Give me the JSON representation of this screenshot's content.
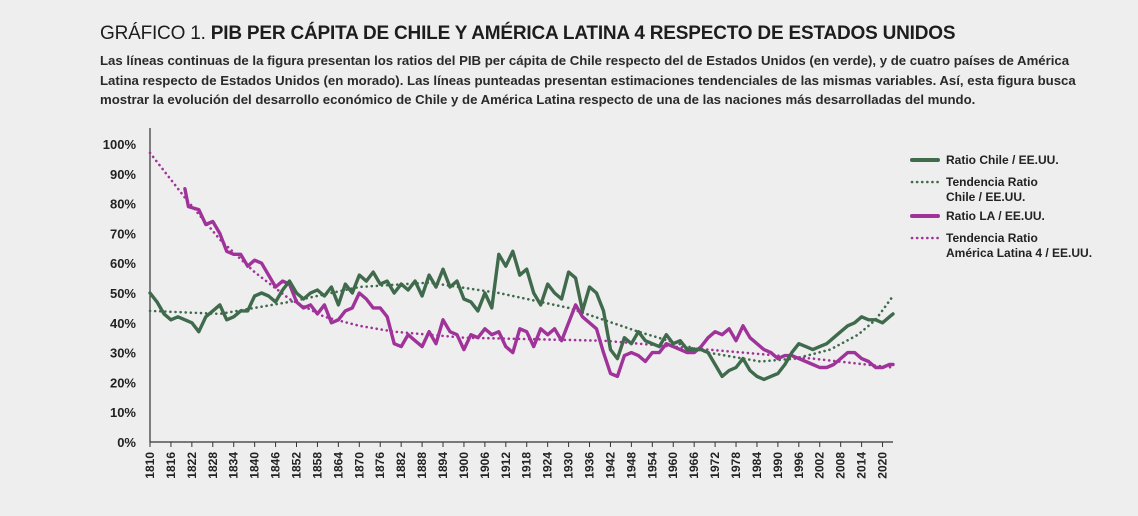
{
  "header": {
    "title_lead": "GRÁFICO 1.",
    "title_main": "PIB PER CÁPITA DE CHILE Y AMÉRICA LATINA 4 RESPECTO DE ESTADOS UNIDOS",
    "subtitle": "Las líneas continuas de la figura presentan los ratios del PIB per cápita de Chile respecto del de Estados Unidos (en verde), y de cuatro países de América Latina respecto de Estados Unidos (en morado). Las líneas punteadas presentan estimaciones tendenciales de las mismas variables. Así, esta figura busca mostrar la evolución del desarrollo económico de Chile y de América Latina respecto de una de las naciones más desarrolladas del mundo."
  },
  "colors": {
    "chile": "#3f6a4c",
    "la": "#a0339a",
    "axis": "#333333",
    "background": "#eeeeee"
  },
  "chart_data": {
    "type": "line",
    "xlim": [
      1810,
      2023
    ],
    "ylim": [
      0,
      100
    ],
    "x_ticks": [
      1810,
      1816,
      1822,
      1828,
      1834,
      1840,
      1846,
      1852,
      1858,
      1864,
      1870,
      1876,
      1882,
      1888,
      1894,
      1900,
      1906,
      1912,
      1918,
      1924,
      1930,
      1936,
      1942,
      1948,
      1954,
      1960,
      1966,
      1972,
      1978,
      1984,
      1990,
      1996,
      2002,
      2008,
      2014,
      2020
    ],
    "y_ticks": [
      "0%",
      "10%",
      "20%",
      "30%",
      "40%",
      "50%",
      "60%",
      "70%",
      "80%",
      "90%",
      "100%"
    ],
    "legend_position": "right",
    "series": [
      {
        "name": "Ratio Chile / EE.UU.",
        "style": "solid",
        "color": "#3f6a4c",
        "points": [
          [
            1810,
            50
          ],
          [
            1812,
            47
          ],
          [
            1814,
            43
          ],
          [
            1816,
            41
          ],
          [
            1818,
            42
          ],
          [
            1820,
            41
          ],
          [
            1822,
            40
          ],
          [
            1824,
            37
          ],
          [
            1826,
            42
          ],
          [
            1828,
            44
          ],
          [
            1830,
            46
          ],
          [
            1832,
            41
          ],
          [
            1834,
            42
          ],
          [
            1836,
            44
          ],
          [
            1838,
            44
          ],
          [
            1840,
            49
          ],
          [
            1842,
            50
          ],
          [
            1844,
            49
          ],
          [
            1846,
            47
          ],
          [
            1848,
            51
          ],
          [
            1850,
            54
          ],
          [
            1852,
            50
          ],
          [
            1854,
            48
          ],
          [
            1856,
            50
          ],
          [
            1858,
            51
          ],
          [
            1860,
            49
          ],
          [
            1862,
            52
          ],
          [
            1864,
            46
          ],
          [
            1866,
            53
          ],
          [
            1868,
            50
          ],
          [
            1870,
            56
          ],
          [
            1872,
            54
          ],
          [
            1874,
            57
          ],
          [
            1876,
            53
          ],
          [
            1878,
            54
          ],
          [
            1880,
            50
          ],
          [
            1882,
            53
          ],
          [
            1884,
            51
          ],
          [
            1886,
            54
          ],
          [
            1888,
            49
          ],
          [
            1890,
            56
          ],
          [
            1892,
            52
          ],
          [
            1894,
            58
          ],
          [
            1896,
            52
          ],
          [
            1898,
            54
          ],
          [
            1900,
            48
          ],
          [
            1902,
            47
          ],
          [
            1904,
            44
          ],
          [
            1906,
            50
          ],
          [
            1908,
            45
          ],
          [
            1910,
            63
          ],
          [
            1912,
            59
          ],
          [
            1914,
            64
          ],
          [
            1916,
            56
          ],
          [
            1918,
            58
          ],
          [
            1920,
            50
          ],
          [
            1922,
            46
          ],
          [
            1924,
            53
          ],
          [
            1926,
            50
          ],
          [
            1928,
            48
          ],
          [
            1930,
            57
          ],
          [
            1932,
            55
          ],
          [
            1934,
            44
          ],
          [
            1936,
            52
          ],
          [
            1938,
            50
          ],
          [
            1940,
            44
          ],
          [
            1942,
            31
          ],
          [
            1944,
            28
          ],
          [
            1946,
            35
          ],
          [
            1948,
            33
          ],
          [
            1950,
            37
          ],
          [
            1952,
            34
          ],
          [
            1954,
            33
          ],
          [
            1956,
            32
          ],
          [
            1958,
            36
          ],
          [
            1960,
            33
          ],
          [
            1962,
            34
          ],
          [
            1964,
            31
          ],
          [
            1966,
            31
          ],
          [
            1968,
            31
          ],
          [
            1970,
            30
          ],
          [
            1972,
            26
          ],
          [
            1974,
            22
          ],
          [
            1976,
            24
          ],
          [
            1978,
            25
          ],
          [
            1980,
            28
          ],
          [
            1982,
            24
          ],
          [
            1984,
            22
          ],
          [
            1986,
            21
          ],
          [
            1988,
            22
          ],
          [
            1990,
            23
          ],
          [
            1992,
            26
          ],
          [
            1994,
            30
          ],
          [
            1996,
            33
          ],
          [
            1998,
            32
          ],
          [
            2000,
            31
          ],
          [
            2002,
            32
          ],
          [
            2004,
            33
          ],
          [
            2006,
            35
          ],
          [
            2008,
            37
          ],
          [
            2010,
            39
          ],
          [
            2012,
            40
          ],
          [
            2014,
            42
          ],
          [
            2016,
            41
          ],
          [
            2018,
            41
          ],
          [
            2020,
            40
          ],
          [
            2022,
            42
          ],
          [
            2023,
            43
          ]
        ]
      },
      {
        "name": "Tendencia Ratio Chile / EE.UU.",
        "style": "dotted",
        "color": "#3f6a4c",
        "points": [
          [
            1810,
            44
          ],
          [
            1830,
            43
          ],
          [
            1850,
            47
          ],
          [
            1870,
            52
          ],
          [
            1890,
            53.5
          ],
          [
            1910,
            50
          ],
          [
            1930,
            45
          ],
          [
            1950,
            37
          ],
          [
            1970,
            30
          ],
          [
            1985,
            27
          ],
          [
            1995,
            28
          ],
          [
            2005,
            31
          ],
          [
            2013,
            36
          ],
          [
            2018,
            41
          ],
          [
            2023,
            49
          ]
        ]
      },
      {
        "name": "Ratio LA / EE.UU.",
        "style": "solid",
        "color": "#a0339a",
        "points": [
          [
            1820,
            85
          ],
          [
            1821,
            79
          ],
          [
            1824,
            78
          ],
          [
            1826,
            73
          ],
          [
            1828,
            74
          ],
          [
            1830,
            70
          ],
          [
            1832,
            64
          ],
          [
            1834,
            63
          ],
          [
            1836,
            63
          ],
          [
            1838,
            59
          ],
          [
            1840,
            61
          ],
          [
            1842,
            60
          ],
          [
            1844,
            56
          ],
          [
            1846,
            52
          ],
          [
            1848,
            54
          ],
          [
            1850,
            53
          ],
          [
            1852,
            47
          ],
          [
            1854,
            45
          ],
          [
            1856,
            46
          ],
          [
            1858,
            43
          ],
          [
            1860,
            46
          ],
          [
            1862,
            40
          ],
          [
            1864,
            41
          ],
          [
            1866,
            44
          ],
          [
            1868,
            45
          ],
          [
            1870,
            50
          ],
          [
            1872,
            48
          ],
          [
            1874,
            45
          ],
          [
            1876,
            45
          ],
          [
            1878,
            42
          ],
          [
            1880,
            33
          ],
          [
            1882,
            32
          ],
          [
            1884,
            36
          ],
          [
            1886,
            34
          ],
          [
            1888,
            32
          ],
          [
            1890,
            37
          ],
          [
            1892,
            33
          ],
          [
            1894,
            41
          ],
          [
            1896,
            37
          ],
          [
            1898,
            36
          ],
          [
            1900,
            31
          ],
          [
            1902,
            36
          ],
          [
            1904,
            35
          ],
          [
            1906,
            38
          ],
          [
            1908,
            36
          ],
          [
            1910,
            37
          ],
          [
            1912,
            32
          ],
          [
            1914,
            30
          ],
          [
            1916,
            38
          ],
          [
            1918,
            37
          ],
          [
            1920,
            32
          ],
          [
            1922,
            38
          ],
          [
            1924,
            36
          ],
          [
            1926,
            38
          ],
          [
            1928,
            34
          ],
          [
            1930,
            40
          ],
          [
            1932,
            46
          ],
          [
            1934,
            42
          ],
          [
            1936,
            40
          ],
          [
            1938,
            38
          ],
          [
            1940,
            30
          ],
          [
            1942,
            23
          ],
          [
            1944,
            22
          ],
          [
            1946,
            29
          ],
          [
            1948,
            30
          ],
          [
            1950,
            29
          ],
          [
            1952,
            27
          ],
          [
            1954,
            30
          ],
          [
            1956,
            30
          ],
          [
            1958,
            33
          ],
          [
            1960,
            32
          ],
          [
            1962,
            31
          ],
          [
            1964,
            30
          ],
          [
            1966,
            30
          ],
          [
            1968,
            32
          ],
          [
            1970,
            35
          ],
          [
            1972,
            37
          ],
          [
            1974,
            36
          ],
          [
            1976,
            38
          ],
          [
            1978,
            34
          ],
          [
            1980,
            39
          ],
          [
            1982,
            35
          ],
          [
            1984,
            33
          ],
          [
            1986,
            31
          ],
          [
            1988,
            30
          ],
          [
            1990,
            28
          ],
          [
            1992,
            29
          ],
          [
            1994,
            29
          ],
          [
            1996,
            28
          ],
          [
            1998,
            27
          ],
          [
            2000,
            26
          ],
          [
            2002,
            25
          ],
          [
            2004,
            25
          ],
          [
            2006,
            26
          ],
          [
            2008,
            28
          ],
          [
            2010,
            30
          ],
          [
            2012,
            30
          ],
          [
            2014,
            28
          ],
          [
            2016,
            27
          ],
          [
            2018,
            25
          ],
          [
            2020,
            25
          ],
          [
            2022,
            26
          ],
          [
            2023,
            26
          ]
        ]
      },
      {
        "name": "Tendencia Ratio América Latina 4 / EE.UU.",
        "style": "dotted",
        "color": "#a0339a",
        "points": [
          [
            1810,
            97
          ],
          [
            1820,
            82
          ],
          [
            1830,
            68
          ],
          [
            1840,
            57
          ],
          [
            1850,
            48
          ],
          [
            1860,
            42
          ],
          [
            1870,
            39
          ],
          [
            1880,
            37
          ],
          [
            1890,
            36
          ],
          [
            1900,
            35
          ],
          [
            1920,
            34.5
          ],
          [
            1940,
            34
          ],
          [
            1960,
            32
          ],
          [
            1980,
            30
          ],
          [
            2000,
            28
          ],
          [
            2023,
            25
          ]
        ]
      }
    ]
  },
  "legend": [
    {
      "line1": "Ratio Chile / EE.UU.",
      "line2": "",
      "series": 0
    },
    {
      "line1": "Tendencia Ratio",
      "line2": "Chile / EE.UU.",
      "series": 1
    },
    {
      "line1": "Ratio LA / EE.UU.",
      "line2": "",
      "series": 2
    },
    {
      "line1": "Tendencia Ratio",
      "line2": "América Latina 4 / EE.UU.",
      "series": 3
    }
  ]
}
